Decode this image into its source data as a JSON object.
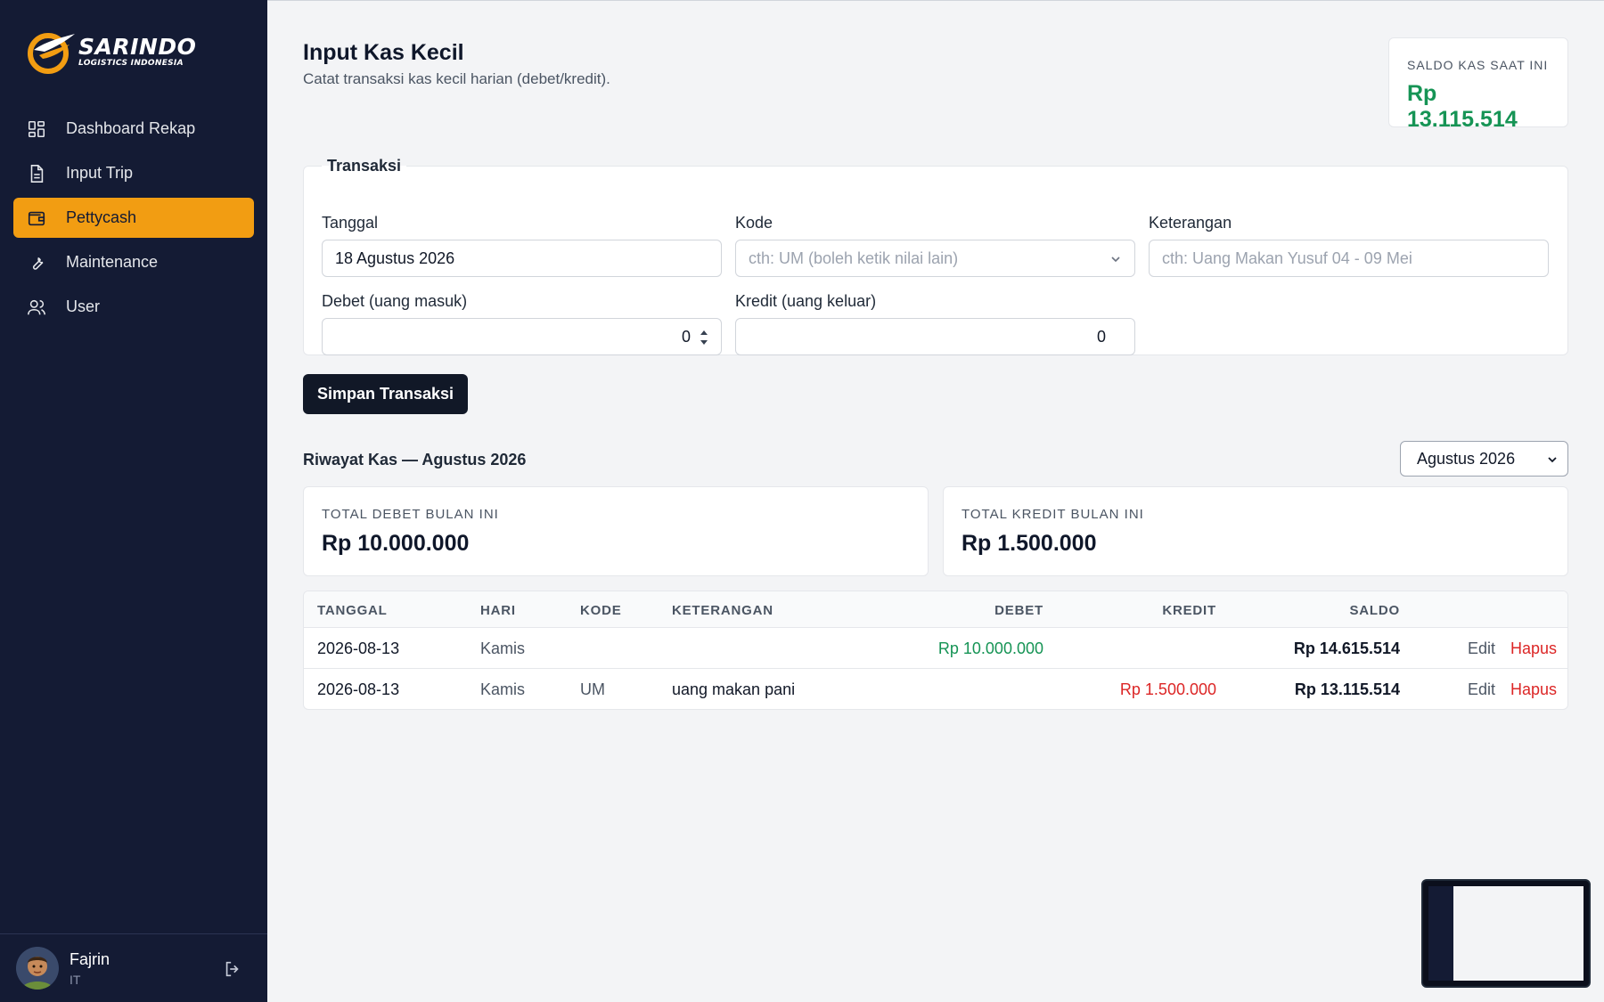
{
  "brand": {
    "name": "SARINDO",
    "subtitle": "LOGISTICS INDONESIA",
    "accent": "#f29d12"
  },
  "sidebar": {
    "items": [
      {
        "label": "Dashboard Rekap",
        "icon": "dashboard-icon"
      },
      {
        "label": "Input Trip",
        "icon": "document-icon"
      },
      {
        "label": "Pettycash",
        "icon": "wallet-icon",
        "active": true
      },
      {
        "label": "Maintenance",
        "icon": "wrench-icon"
      },
      {
        "label": "User",
        "icon": "users-icon"
      }
    ]
  },
  "user": {
    "name": "Fajrin",
    "role": "IT"
  },
  "header": {
    "title": "Input Kas Kecil",
    "subtitle": "Catat transaksi kas kecil harian (debet/kredit).",
    "saldo_label": "SALDO KAS SAAT INI",
    "saldo_value": "Rp 13.115.514"
  },
  "form": {
    "legend": "Transaksi",
    "tanggal_label": "Tanggal",
    "tanggal_value": "18 Agustus 2026",
    "kode_label": "Kode",
    "kode_placeholder": "cth: UM (boleh ketik nilai lain)",
    "keterangan_label": "Keterangan",
    "keterangan_placeholder": "cth: Uang Makan Yusuf 04 - 09 Mei",
    "debet_label": "Debet (uang masuk)",
    "debet_value": "0",
    "kredit_label": "Kredit (uang keluar)",
    "kredit_value": "0",
    "save_label": "Simpan Transaksi"
  },
  "history": {
    "title": "Riwayat Kas — Agustus 2026",
    "month_selected": "Agustus 2026",
    "total_debet_label": "TOTAL DEBET BULAN INI",
    "total_debet_value": "Rp 10.000.000",
    "total_kredit_label": "TOTAL KREDIT BULAN INI",
    "total_kredit_value": "Rp 1.500.000",
    "columns": [
      "TANGGAL",
      "HARI",
      "KODE",
      "KETERANGAN",
      "DEBET",
      "KREDIT",
      "SALDO"
    ],
    "rows": [
      {
        "tanggal": "2026-08-13",
        "hari": "Kamis",
        "kode": "",
        "keterangan": "",
        "debet": "Rp 10.000.000",
        "kredit": "",
        "saldo": "Rp 14.615.514"
      },
      {
        "tanggal": "2026-08-13",
        "hari": "Kamis",
        "kode": "UM",
        "keterangan": "uang makan pani",
        "debet": "",
        "kredit": "Rp 1.500.000",
        "saldo": "Rp 13.115.514"
      }
    ],
    "edit_label": "Edit",
    "delete_label": "Hapus"
  }
}
